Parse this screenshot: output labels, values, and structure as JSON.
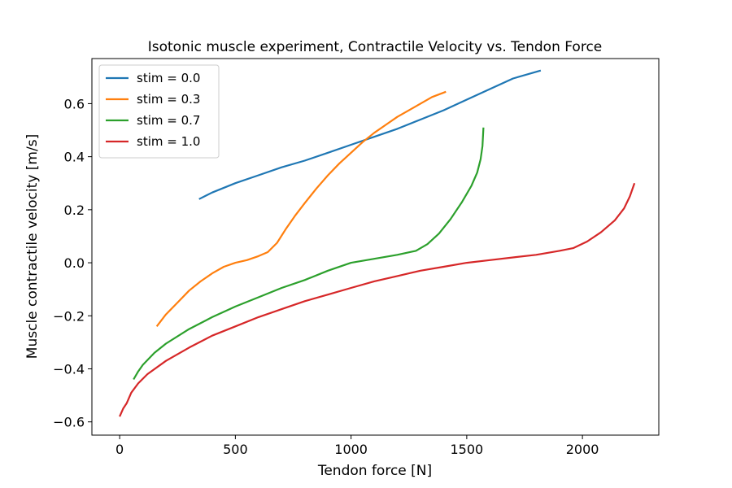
{
  "chart_data": {
    "type": "line",
    "title": "Isotonic muscle experiment, Contractile Velocity vs. Tendon Force",
    "xlabel": "Tendon force [N]",
    "ylabel": "Muscle contractile velocity [m/s]",
    "xlim": [
      -120,
      2330
    ],
    "ylim": [
      -0.65,
      0.77
    ],
    "xticks": [
      0,
      500,
      1000,
      1500,
      2000
    ],
    "xtick_labels": [
      "0",
      "500",
      "1000",
      "1500",
      "2000"
    ],
    "yticks": [
      -0.6,
      -0.4,
      -0.2,
      0.0,
      0.2,
      0.4,
      0.6
    ],
    "ytick_labels": [
      "−0.6",
      "−0.4",
      "−0.2",
      "0.0",
      "0.2",
      "0.4",
      "0.6"
    ],
    "grid": false,
    "legend_position": "upper-left",
    "series": [
      {
        "name": "stim = 0.0",
        "color": "#1f77b4",
        "points": [
          [
            343,
            0.24
          ],
          [
            400,
            0.265
          ],
          [
            500,
            0.3
          ],
          [
            600,
            0.33
          ],
          [
            700,
            0.36
          ],
          [
            800,
            0.385
          ],
          [
            900,
            0.415
          ],
          [
            1000,
            0.445
          ],
          [
            1100,
            0.475
          ],
          [
            1200,
            0.505
          ],
          [
            1300,
            0.54
          ],
          [
            1400,
            0.575
          ],
          [
            1500,
            0.615
          ],
          [
            1600,
            0.655
          ],
          [
            1700,
            0.695
          ],
          [
            1820,
            0.725
          ]
        ]
      },
      {
        "name": "stim = 0.3",
        "color": "#ff7f0e",
        "points": [
          [
            160,
            -0.24
          ],
          [
            200,
            -0.195
          ],
          [
            250,
            -0.15
          ],
          [
            300,
            -0.105
          ],
          [
            350,
            -0.07
          ],
          [
            400,
            -0.04
          ],
          [
            450,
            -0.015
          ],
          [
            500,
            0.0
          ],
          [
            550,
            0.01
          ],
          [
            600,
            0.025
          ],
          [
            640,
            0.04
          ],
          [
            680,
            0.075
          ],
          [
            720,
            0.13
          ],
          [
            760,
            0.18
          ],
          [
            800,
            0.225
          ],
          [
            850,
            0.28
          ],
          [
            900,
            0.33
          ],
          [
            950,
            0.375
          ],
          [
            1000,
            0.415
          ],
          [
            1050,
            0.455
          ],
          [
            1100,
            0.49
          ],
          [
            1150,
            0.52
          ],
          [
            1200,
            0.55
          ],
          [
            1250,
            0.575
          ],
          [
            1300,
            0.6
          ],
          [
            1350,
            0.625
          ],
          [
            1410,
            0.645
          ]
        ]
      },
      {
        "name": "stim = 0.7",
        "color": "#2ca02c",
        "points": [
          [
            60,
            -0.44
          ],
          [
            80,
            -0.41
          ],
          [
            100,
            -0.385
          ],
          [
            150,
            -0.34
          ],
          [
            200,
            -0.305
          ],
          [
            300,
            -0.25
          ],
          [
            400,
            -0.205
          ],
          [
            500,
            -0.165
          ],
          [
            600,
            -0.13
          ],
          [
            700,
            -0.095
          ],
          [
            800,
            -0.065
          ],
          [
            900,
            -0.03
          ],
          [
            1000,
            0.0
          ],
          [
            1100,
            0.015
          ],
          [
            1200,
            0.03
          ],
          [
            1280,
            0.045
          ],
          [
            1330,
            0.07
          ],
          [
            1380,
            0.11
          ],
          [
            1430,
            0.165
          ],
          [
            1480,
            0.23
          ],
          [
            1520,
            0.29
          ],
          [
            1545,
            0.34
          ],
          [
            1560,
            0.39
          ],
          [
            1568,
            0.44
          ],
          [
            1572,
            0.51
          ]
        ]
      },
      {
        "name": "stim = 1.0",
        "color": "#d62728",
        "points": [
          [
            0,
            -0.58
          ],
          [
            15,
            -0.55
          ],
          [
            30,
            -0.53
          ],
          [
            50,
            -0.49
          ],
          [
            80,
            -0.455
          ],
          [
            120,
            -0.42
          ],
          [
            200,
            -0.37
          ],
          [
            300,
            -0.32
          ],
          [
            400,
            -0.275
          ],
          [
            500,
            -0.24
          ],
          [
            600,
            -0.205
          ],
          [
            700,
            -0.175
          ],
          [
            800,
            -0.145
          ],
          [
            900,
            -0.12
          ],
          [
            1000,
            -0.095
          ],
          [
            1100,
            -0.07
          ],
          [
            1200,
            -0.05
          ],
          [
            1300,
            -0.03
          ],
          [
            1400,
            -0.015
          ],
          [
            1500,
            0.0
          ],
          [
            1600,
            0.01
          ],
          [
            1700,
            0.02
          ],
          [
            1800,
            0.03
          ],
          [
            1900,
            0.045
          ],
          [
            1960,
            0.055
          ],
          [
            2020,
            0.08
          ],
          [
            2080,
            0.115
          ],
          [
            2140,
            0.16
          ],
          [
            2180,
            0.205
          ],
          [
            2205,
            0.25
          ],
          [
            2225,
            0.3
          ]
        ]
      }
    ]
  }
}
